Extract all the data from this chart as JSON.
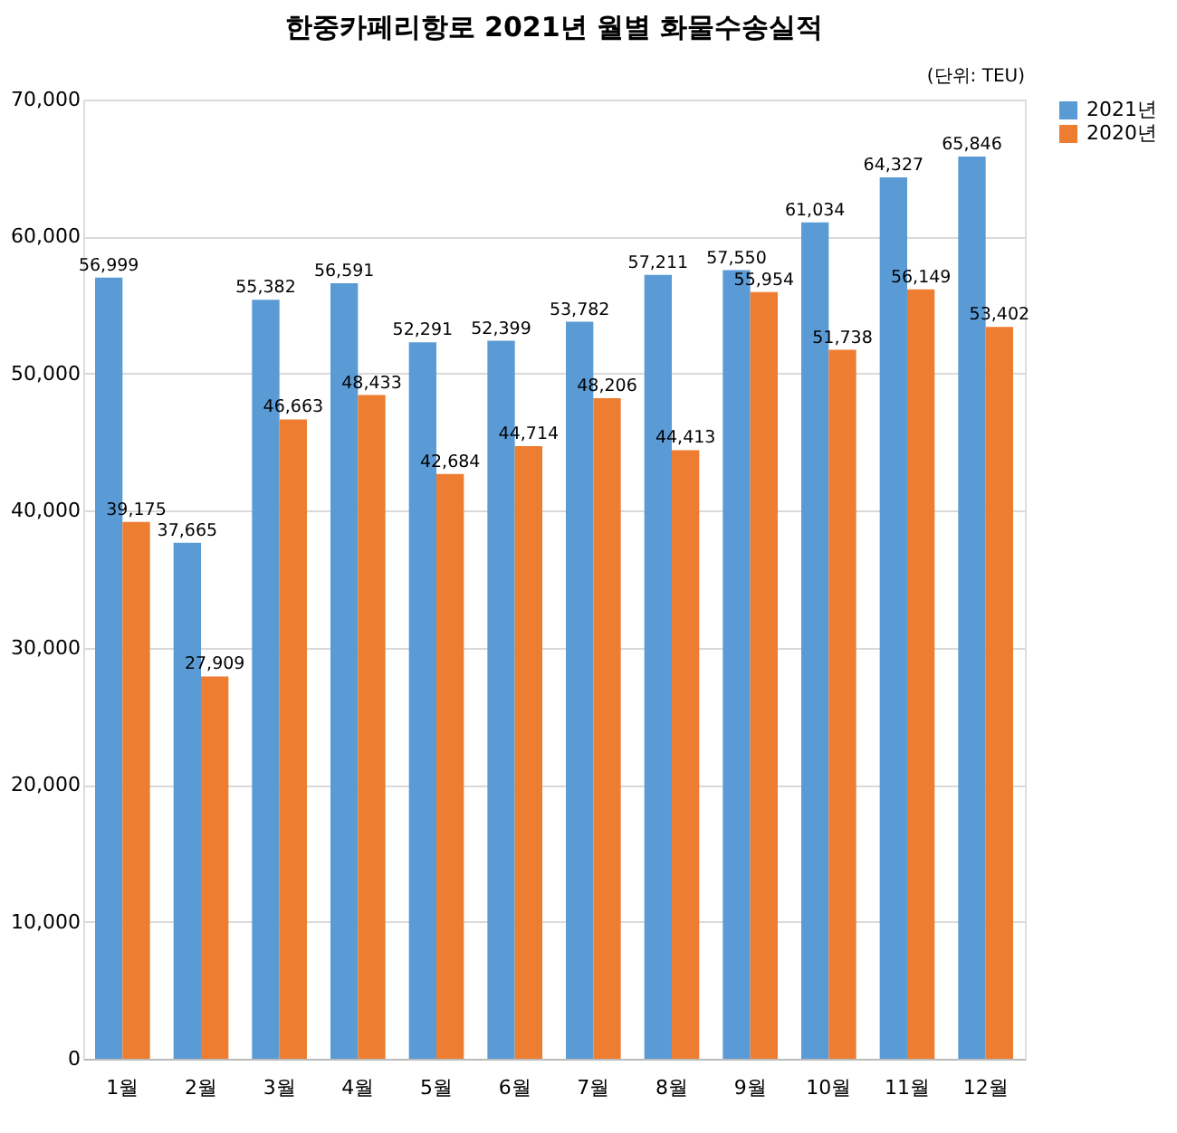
{
  "chart_data": {
    "type": "bar",
    "title": "한중카페리항로 2021년 월별 화물수송실적",
    "annotations": [
      "(단위: TEU)"
    ],
    "categories": [
      "1월",
      "2월",
      "3월",
      "4월",
      "5월",
      "6월",
      "7월",
      "8월",
      "9월",
      "10월",
      "11월",
      "12월"
    ],
    "series": [
      {
        "name": "2021년",
        "color": "#5b9bd5",
        "values": [
          56999,
          37665,
          55382,
          56591,
          52291,
          52399,
          53782,
          57211,
          57550,
          61034,
          64327,
          65846
        ],
        "value_labels": [
          "56,999",
          "37,665",
          "55,382",
          "56,591",
          "52,291",
          "52,399",
          "53,782",
          "57,211",
          "57,550",
          "61,034",
          "64,327",
          "65,846"
        ]
      },
      {
        "name": "2020년",
        "color": "#ed7d31",
        "values": [
          39175,
          27909,
          46663,
          48433,
          42684,
          44714,
          48206,
          44413,
          55954,
          51738,
          56149,
          53402
        ],
        "value_labels": [
          "39,175",
          "27,909",
          "46,663",
          "48,433",
          "42,684",
          "44,714",
          "48,206",
          "44,413",
          "55,954",
          "51,738",
          "56,149",
          "53,402"
        ]
      }
    ],
    "ylim": [
      0,
      70000
    ],
    "yticks": [
      {
        "value": 0,
        "label": "0"
      },
      {
        "value": 10000,
        "label": "10,000"
      },
      {
        "value": 20000,
        "label": "20,000"
      },
      {
        "value": 30000,
        "label": "30,000"
      },
      {
        "value": 40000,
        "label": "40,000"
      },
      {
        "value": 50000,
        "label": "50,000"
      },
      {
        "value": 60000,
        "label": "60,000"
      },
      {
        "value": 70000,
        "label": "70,000"
      }
    ],
    "grid": "y",
    "legend": "right"
  }
}
